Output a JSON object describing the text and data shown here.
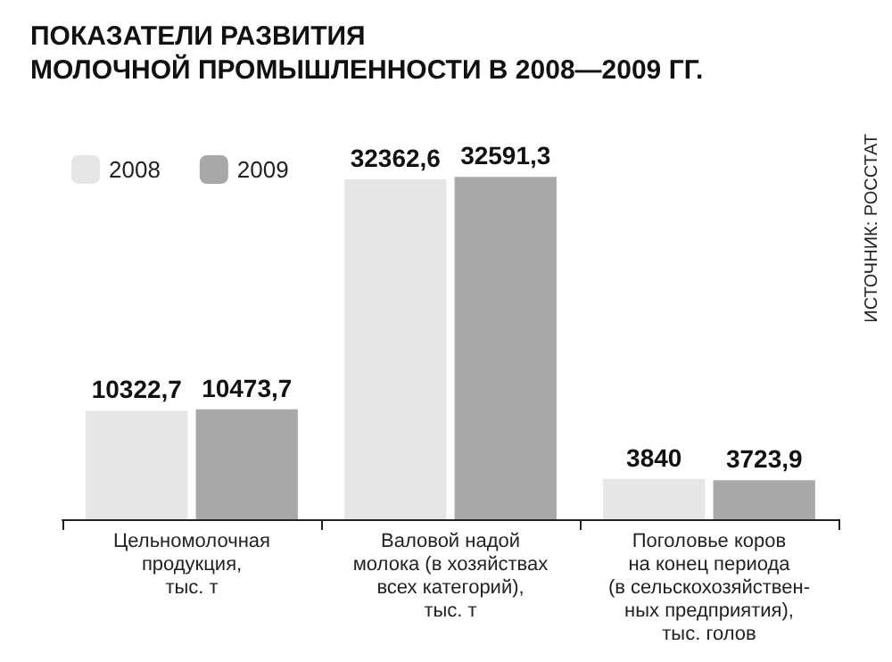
{
  "chart_data": {
    "type": "bar",
    "title": "ПОКАЗАТЕЛИ РАЗВИТИЯ\nМОЛОЧНОЙ ПРОМЫШЛЕННОСТИ В 2008—2009 ГГ.",
    "categories": [
      "Цельномолочная\nпродукция,\nтыс. т",
      "Валовой надой\nмолока (в хозяйствах\nвсех категорий),\nтыс. т",
      "Поголовье коров\nна конец периода\n(в сельскохозяйствен-\nных предприятия),\nтыс. голов"
    ],
    "series": [
      {
        "name": "2008",
        "color": "#e6e6e6",
        "values": [
          10322.7,
          32362.6,
          3840
        ],
        "value_labels": [
          "10322,7",
          "32362,6",
          "3840"
        ]
      },
      {
        "name": "2009",
        "color": "#a8a8a8",
        "values": [
          10473.7,
          32591.3,
          3723.9
        ],
        "value_labels": [
          "10473,7",
          "32591,3",
          "3723,9"
        ]
      }
    ],
    "annotations": [
      "ИСТОЧНИК: РОССТАТ"
    ],
    "legend": "top left"
  }
}
